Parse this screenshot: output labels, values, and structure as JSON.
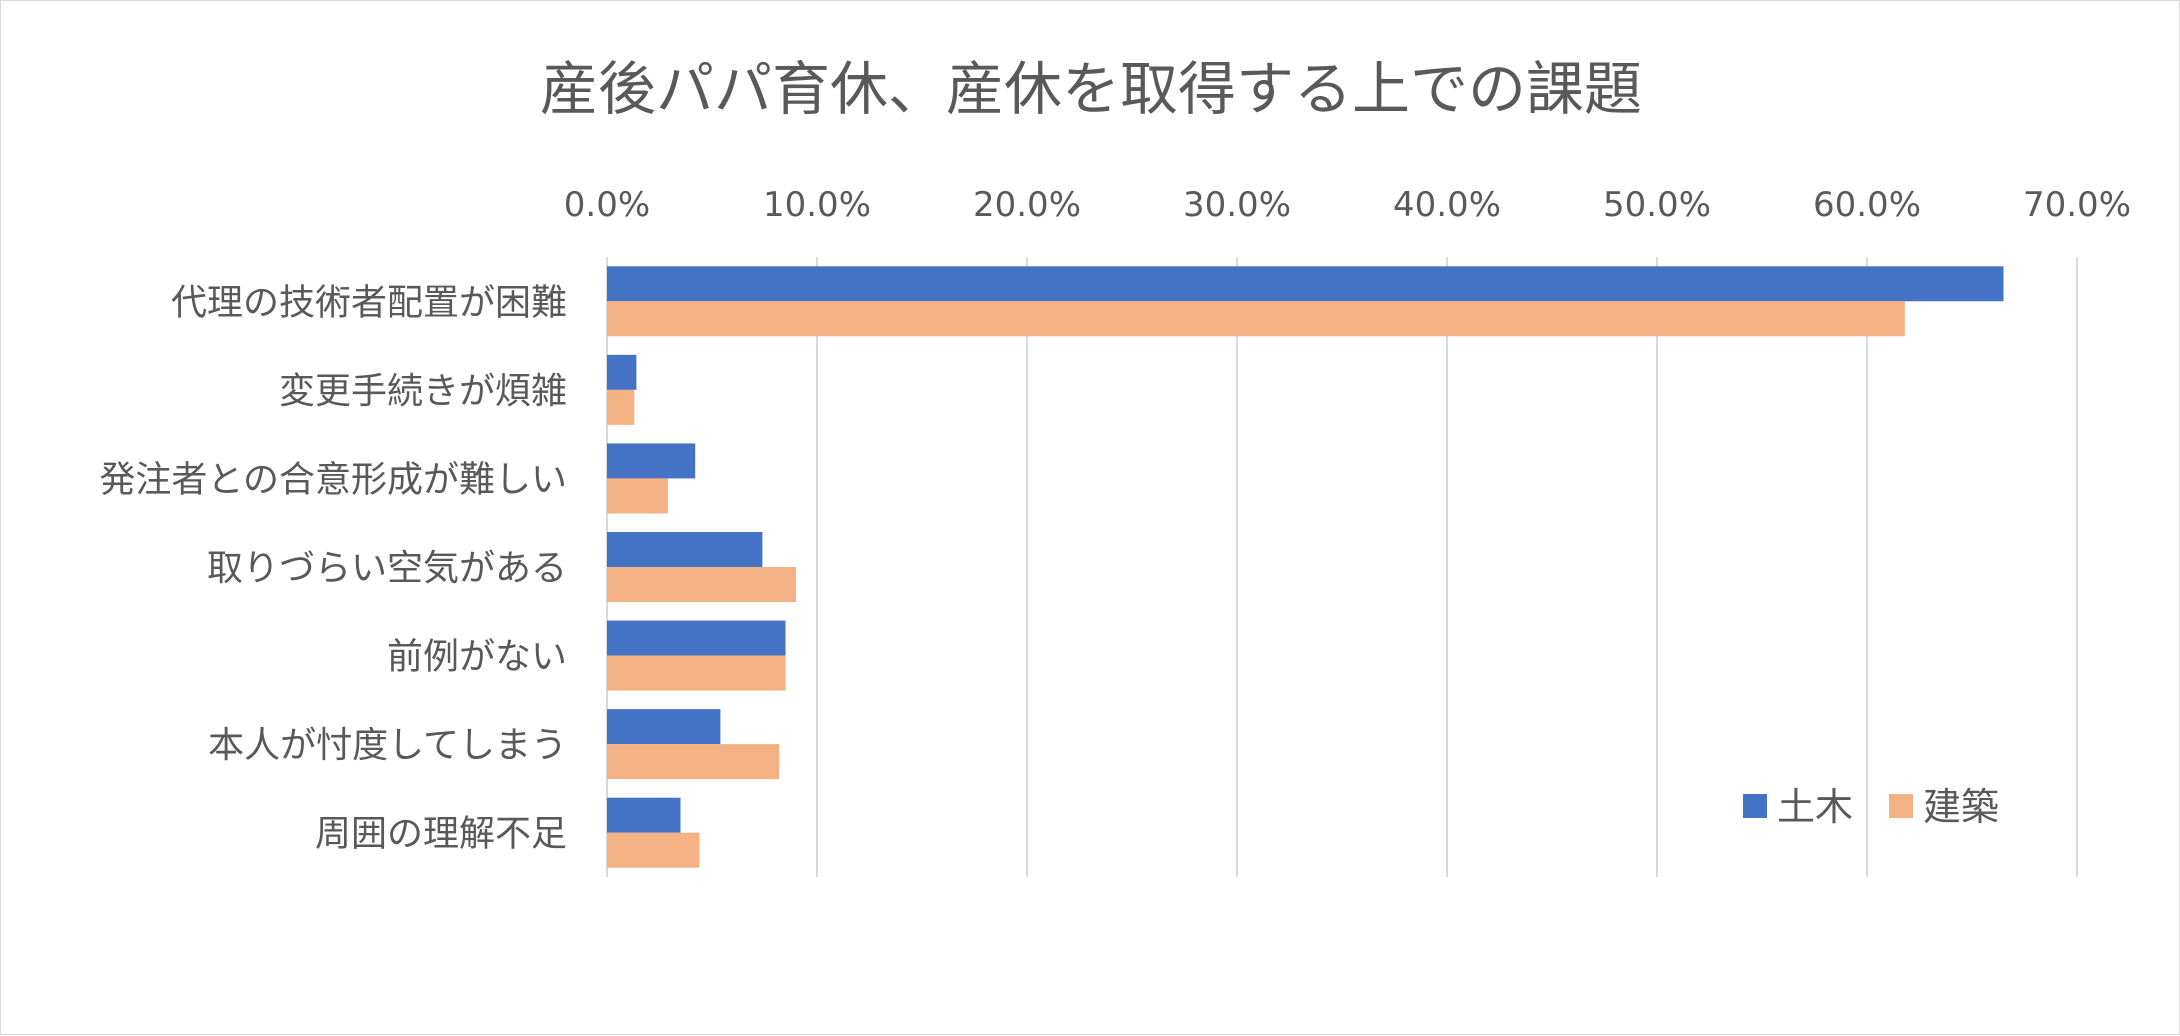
{
  "chart_data": {
    "type": "bar",
    "orientation": "horizontal",
    "title": "産後パパ育休、産休を取得する上での課題",
    "xlabel": "",
    "ylabel": "",
    "xlim": [
      0,
      70
    ],
    "x_ticks": [
      "0.0%",
      "10.0%",
      "20.0%",
      "30.0%",
      "40.0%",
      "50.0%",
      "60.0%",
      "70.0%"
    ],
    "x_axis_position": "top",
    "grid": true,
    "legend_position": "bottom-right",
    "categories": [
      "代理の技術者配置が困難",
      "変更手続きが煩雑",
      "発注者との合意形成が難しい",
      "取りづらい空気がある",
      "前例がない",
      "本人が忖度してしまう",
      "周囲の理解不足"
    ],
    "series": [
      {
        "name": "土木",
        "color": "#4472C4",
        "values": [
          66.5,
          1.4,
          4.2,
          7.4,
          8.5,
          5.4,
          3.5
        ]
      },
      {
        "name": "建築",
        "color": "#F4B183",
        "values": [
          61.8,
          1.3,
          2.9,
          9.0,
          8.5,
          8.2,
          4.4
        ]
      }
    ]
  }
}
